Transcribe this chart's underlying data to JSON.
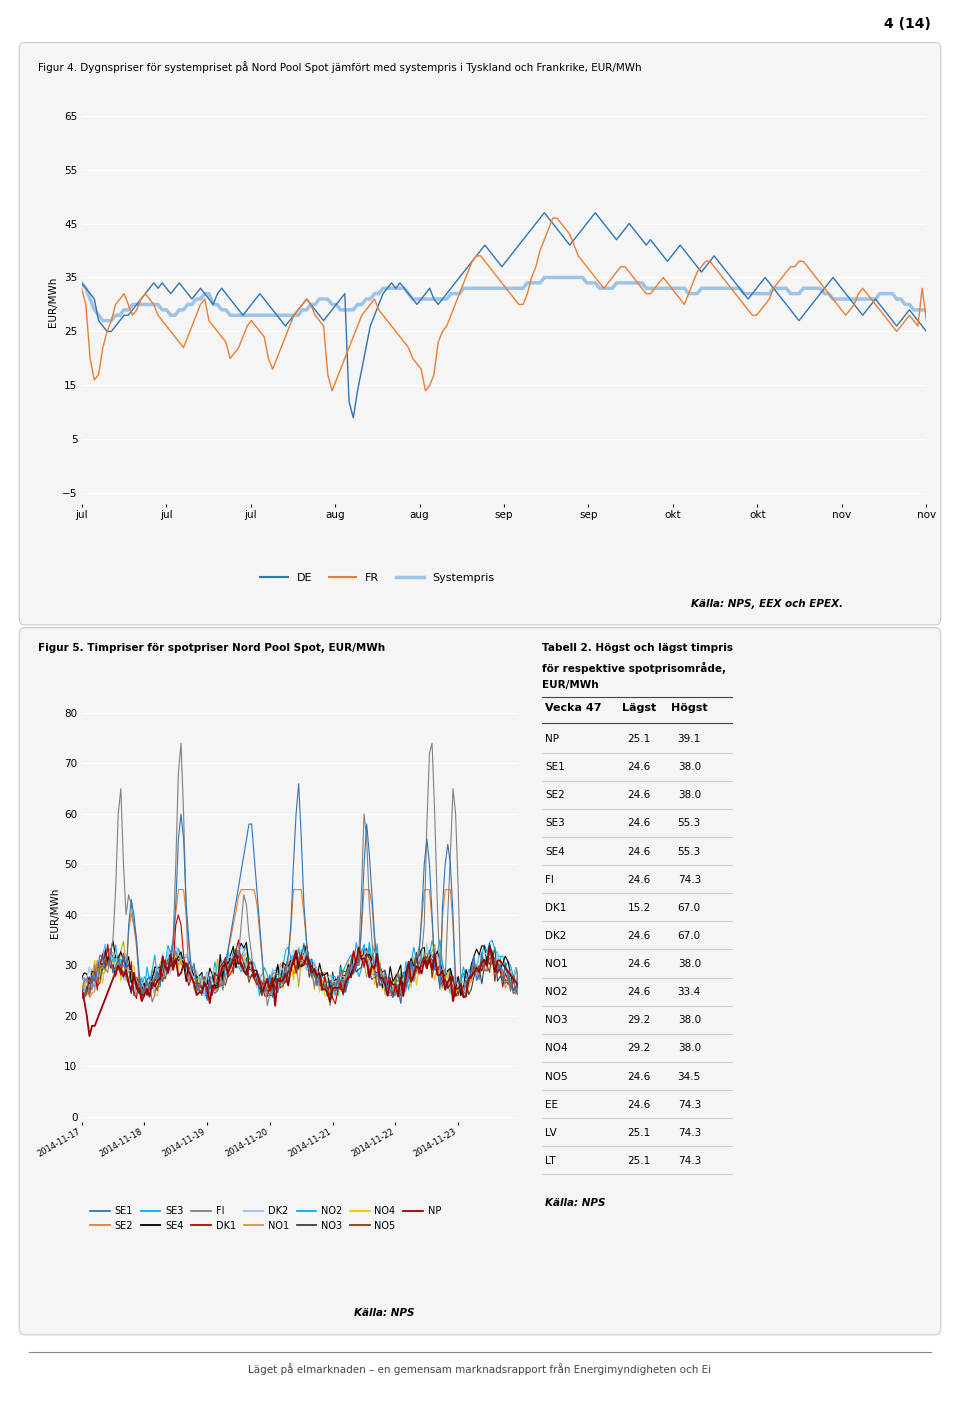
{
  "page_number": "4 (14)",
  "fig4": {
    "title": "Figur 4. Dygnspriser för systempriset på Nord Pool Spot jämfört med systempris i Tyskland och Frankrike, EUR/MWh",
    "ylabel": "EUR/MWh",
    "ylim": [
      -7,
      68
    ],
    "yticks": [
      -5,
      5,
      15,
      25,
      35,
      45,
      55,
      65
    ],
    "source": "Källa: NPS, EEX och EPEX.",
    "x_labels": [
      "jul",
      "jul",
      "jul",
      "aug",
      "aug",
      "sep",
      "sep",
      "okt",
      "okt",
      "nov",
      "nov"
    ],
    "de_color": "#2e75b6",
    "fr_color": "#ed7d31",
    "sys_color": "#9dc3e6",
    "de_data": [
      34,
      33,
      32,
      31,
      27,
      26,
      25,
      25,
      26,
      27,
      28,
      28,
      29,
      30,
      31,
      32,
      33,
      34,
      33,
      34,
      33,
      32,
      33,
      34,
      33,
      32,
      31,
      32,
      33,
      32,
      31,
      30,
      32,
      33,
      32,
      31,
      30,
      29,
      28,
      29,
      30,
      31,
      32,
      31,
      30,
      29,
      28,
      27,
      26,
      27,
      28,
      29,
      30,
      31,
      30,
      29,
      28,
      27,
      28,
      29,
      30,
      31,
      32,
      12,
      9,
      14,
      18,
      22,
      26,
      28,
      30,
      32,
      33,
      34,
      33,
      34,
      33,
      32,
      31,
      30,
      31,
      32,
      33,
      31,
      30,
      31,
      32,
      33,
      34,
      35,
      36,
      37,
      38,
      39,
      40,
      41,
      40,
      39,
      38,
      37,
      38,
      39,
      40,
      41,
      42,
      43,
      44,
      45,
      46,
      47,
      46,
      45,
      44,
      43,
      42,
      41,
      42,
      43,
      44,
      45,
      46,
      47,
      46,
      45,
      44,
      43,
      42,
      43,
      44,
      45,
      44,
      43,
      42,
      41,
      42,
      41,
      40,
      39,
      38,
      39,
      40,
      41,
      40,
      39,
      38,
      37,
      36,
      37,
      38,
      39,
      38,
      37,
      36,
      35,
      34,
      33,
      32,
      31,
      32,
      33,
      34,
      35,
      34,
      33,
      32,
      31,
      30,
      29,
      28,
      27,
      28,
      29,
      30,
      31,
      32,
      33,
      34,
      35,
      34,
      33,
      32,
      31,
      30,
      29,
      28,
      29,
      30,
      31,
      30,
      29,
      28,
      27,
      26,
      27,
      28,
      29,
      28,
      27,
      26,
      25
    ],
    "fr_data": [
      33,
      30,
      20,
      16,
      17,
      22,
      25,
      27,
      30,
      31,
      32,
      30,
      28,
      29,
      31,
      32,
      31,
      30,
      28,
      27,
      26,
      25,
      24,
      23,
      22,
      24,
      26,
      28,
      30,
      31,
      27,
      26,
      25,
      24,
      23,
      20,
      21,
      22,
      24,
      26,
      27,
      26,
      25,
      24,
      20,
      18,
      20,
      22,
      24,
      26,
      28,
      29,
      30,
      31,
      30,
      28,
      27,
      26,
      17,
      14,
      16,
      18,
      20,
      22,
      24,
      26,
      28,
      29,
      30,
      31,
      29,
      28,
      27,
      26,
      25,
      24,
      23,
      22,
      20,
      19,
      18,
      14,
      15,
      17,
      23,
      25,
      26,
      28,
      30,
      32,
      34,
      36,
      38,
      39,
      39,
      38,
      37,
      36,
      35,
      34,
      33,
      32,
      31,
      30,
      30,
      32,
      35,
      37,
      40,
      42,
      44,
      46,
      46,
      45,
      44,
      43,
      41,
      39,
      38,
      37,
      36,
      35,
      34,
      33,
      34,
      35,
      36,
      37,
      37,
      36,
      35,
      34,
      33,
      32,
      32,
      33,
      34,
      35,
      34,
      33,
      32,
      31,
      30,
      32,
      34,
      36,
      37,
      38,
      38,
      37,
      36,
      35,
      34,
      33,
      32,
      31,
      30,
      29,
      28,
      28,
      29,
      30,
      31,
      33,
      34,
      35,
      36,
      37,
      37,
      38,
      38,
      37,
      36,
      35,
      34,
      33,
      32,
      31,
      30,
      29,
      28,
      29,
      30,
      32,
      33,
      32,
      31,
      30,
      29,
      28,
      27,
      26,
      25,
      26,
      27,
      28,
      27,
      26,
      33,
      27
    ],
    "sys_data": [
      34,
      33,
      31,
      29,
      28,
      27,
      27,
      27,
      28,
      28,
      29,
      29,
      30,
      30,
      30,
      30,
      30,
      30,
      30,
      29,
      29,
      28,
      28,
      29,
      29,
      30,
      30,
      31,
      31,
      32,
      32,
      30,
      30,
      29,
      29,
      28,
      28,
      28,
      28,
      28,
      28,
      28,
      28,
      28,
      28,
      28,
      28,
      28,
      28,
      28,
      28,
      28,
      29,
      29,
      30,
      30,
      31,
      31,
      31,
      30,
      30,
      29,
      29,
      29,
      29,
      30,
      30,
      31,
      31,
      32,
      32,
      33,
      33,
      33,
      33,
      33,
      33,
      32,
      31,
      31,
      31,
      31,
      31,
      31,
      31,
      31,
      31,
      32,
      32,
      32,
      33,
      33,
      33,
      33,
      33,
      33,
      33,
      33,
      33,
      33,
      33,
      33,
      33,
      33,
      33,
      34,
      34,
      34,
      34,
      35,
      35,
      35,
      35,
      35,
      35,
      35,
      35,
      35,
      35,
      34,
      34,
      34,
      33,
      33,
      33,
      33,
      34,
      34,
      34,
      34,
      34,
      34,
      34,
      33,
      33,
      33,
      33,
      33,
      33,
      33,
      33,
      33,
      33,
      32,
      32,
      32,
      33,
      33,
      33,
      33,
      33,
      33,
      33,
      33,
      33,
      33,
      32,
      32,
      32,
      32,
      32,
      32,
      32,
      33,
      33,
      33,
      33,
      32,
      32,
      32,
      33,
      33,
      33,
      33,
      33,
      32,
      32,
      31,
      31,
      31,
      31,
      31,
      31,
      31,
      31,
      31,
      31,
      31,
      32,
      32,
      32,
      32,
      31,
      31,
      30,
      30,
      29,
      29,
      29,
      29
    ]
  },
  "fig5": {
    "title": "Figur 5. Timpriser för spotpriser Nord Pool Spot, EUR/MWh",
    "ylabel": "EUR/MWh",
    "ylim": [
      -1,
      82
    ],
    "yticks": [
      0,
      10,
      20,
      30,
      40,
      50,
      60,
      70,
      80
    ],
    "x_labels": [
      "2014-11-17",
      "2014-11-18",
      "2014-11-19",
      "2014-11-20",
      "2014-11-21",
      "2014-11-22",
      "2014-11-23"
    ],
    "source": "Källa: NPS",
    "colors": {
      "SE1": "#2e75b6",
      "SE2": "#ed7d31",
      "SE3": "#00b0f0",
      "SE4": "#000000",
      "FI": "#808080",
      "DK1": "#c00000",
      "DK2": "#9dc3e6",
      "NO1": "#c9a227",
      "NO2": "#00b0f0",
      "NO3": "#404040",
      "NO4": "#ffc000",
      "NO5": "#843c0c",
      "NP": "#9b0000"
    },
    "legend_order": [
      "SE1",
      "SE2",
      "SE3",
      "SE4",
      "FI",
      "DK1",
      "DK2",
      "NO1",
      "NO2",
      "NO3",
      "NO4",
      "NO5",
      "NP"
    ]
  },
  "table2": {
    "title_line1": "Tabell 2. Högst och lägst timpris",
    "title_line2": "för respektive spotprisområde,",
    "title_line3": "EUR/MWh",
    "header": [
      "Vecka 47",
      "Lägst",
      "Högst"
    ],
    "rows": [
      [
        "NP",
        "25.1",
        "39.1"
      ],
      [
        "SE1",
        "24.6",
        "38.0"
      ],
      [
        "SE2",
        "24.6",
        "38.0"
      ],
      [
        "SE3",
        "24.6",
        "55.3"
      ],
      [
        "SE4",
        "24.6",
        "55.3"
      ],
      [
        "FI",
        "24.6",
        "74.3"
      ],
      [
        "DK1",
        "15.2",
        "67.0"
      ],
      [
        "DK2",
        "24.6",
        "67.0"
      ],
      [
        "NO1",
        "24.6",
        "38.0"
      ],
      [
        "NO2",
        "24.6",
        "33.4"
      ],
      [
        "NO3",
        "29.2",
        "38.0"
      ],
      [
        "NO4",
        "29.2",
        "38.0"
      ],
      [
        "NO5",
        "24.6",
        "34.5"
      ],
      [
        "EE",
        "24.6",
        "74.3"
      ],
      [
        "LV",
        "25.1",
        "74.3"
      ],
      [
        "LT",
        "25.1",
        "74.3"
      ]
    ],
    "source": "Källa: NPS"
  },
  "footer": "Läget på elmarknaden – en gemensam marknadsrapport från Energimyndigheten och Ei"
}
